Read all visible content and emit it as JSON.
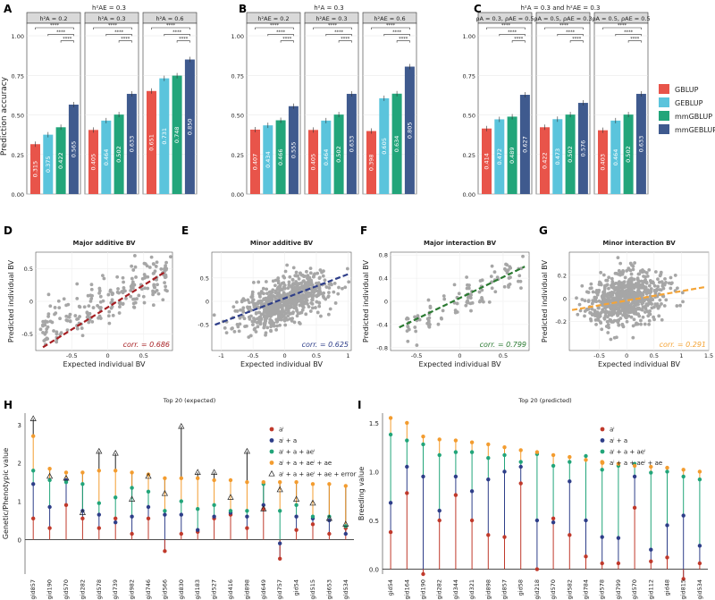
{
  "colors": {
    "GBLUP": "#e8544a",
    "GEBLUP": "#5bc4dc",
    "mmGBLUP": "#22a57a",
    "mmGEBLUP": "#3f5a8e",
    "point": "#a6a6a6",
    "red": "#a61e22",
    "blue": "#2e3e89",
    "green": "#2b7a32",
    "orange": "#f4a437",
    "dark": "#c0392b",
    "navy": "#2e3e89",
    "emerald": "#22a57a",
    "amber": "#f39c2f"
  },
  "chart_data": [
    {
      "id": "A",
      "type": "bar",
      "supertitle": "h²AE = 0.3",
      "ylabel": "Prediction accuracy",
      "ylim": [
        0,
        1
      ],
      "yticks": [
        "0.00",
        "0.25",
        "0.50",
        "0.75",
        "1.00"
      ],
      "sig": "****",
      "panels": [
        {
          "strip": "h²A = 0.2",
          "values": [
            0.315,
            0.375,
            0.422,
            0.565
          ]
        },
        {
          "strip": "h²A = 0.3",
          "values": [
            0.405,
            0.464,
            0.502,
            0.633
          ]
        },
        {
          "strip": "h²A = 0.6",
          "values": [
            0.651,
            0.731,
            0.748,
            0.85
          ]
        }
      ]
    },
    {
      "id": "B",
      "type": "bar",
      "supertitle": "h²A = 0.3",
      "ylim": [
        0,
        1
      ],
      "yticks": [
        "0.00",
        "0.25",
        "0.50",
        "0.75",
        "1.00"
      ],
      "sig": "****",
      "panels": [
        {
          "strip": "h²AE = 0.2",
          "values": [
            0.407,
            0.434,
            0.466,
            0.555
          ]
        },
        {
          "strip": "h²AE = 0.3",
          "values": [
            0.405,
            0.464,
            0.502,
            0.633
          ]
        },
        {
          "strip": "h²AE = 0.6",
          "values": [
            0.398,
            0.605,
            0.634,
            0.805
          ]
        }
      ]
    },
    {
      "id": "C",
      "type": "bar",
      "supertitle": "h²A = 0.3 and h²AE = 0.3",
      "ylim": [
        0,
        1
      ],
      "yticks": [
        "0.00",
        "0.25",
        "0.50",
        "0.75",
        "1.00"
      ],
      "sig": "****",
      "panels": [
        {
          "strip": "ρA = 0.3, ρAE = 0.5",
          "values": [
            0.414,
            0.472,
            0.489,
            0.627
          ]
        },
        {
          "strip": "ρA = 0.5, ρAE = 0.3",
          "values": [
            0.422,
            0.473,
            0.502,
            0.576
          ]
        },
        {
          "strip": "ρA = 0.5, ρAE = 0.5",
          "values": [
            0.403,
            0.464,
            0.502,
            0.633
          ]
        }
      ]
    },
    {
      "id": "D",
      "type": "scatter",
      "title": "Major additive BV",
      "xlabel": "Expected individual BV",
      "ylabel": "Predicted individual BV",
      "corr": "corr. = 0.686",
      "xlim": [
        -1.0,
        0.9
      ],
      "ylim": [
        -0.75,
        0.75
      ],
      "xticks": [
        -0.5,
        0.0,
        0.5
      ],
      "yticks": [
        -0.5,
        0.0,
        0.5
      ]
    },
    {
      "id": "E",
      "type": "scatter",
      "title": "Minor additive BV",
      "xlabel": "Expected individual BV",
      "ylabel": "",
      "corr": "corr. = 0.625",
      "xlim": [
        -1.15,
        1.05
      ],
      "ylim": [
        -1.05,
        1.05
      ],
      "xticks": [
        -1.0,
        -0.5,
        0.0,
        0.5,
        1.0
      ],
      "yticks": [
        -0.5,
        0.0,
        0.5
      ]
    },
    {
      "id": "F",
      "type": "scatter",
      "title": "Major interaction BV",
      "xlabel": "Expected individual BV",
      "ylabel": "Predicted individual BV",
      "corr": "corr. = 0.799",
      "xlim": [
        -0.8,
        0.8
      ],
      "ylim": [
        -0.85,
        0.85
      ],
      "xticks": [
        -0.5,
        0.0,
        0.5
      ],
      "yticks": [
        -0.8,
        -0.4,
        0.0,
        0.4,
        0.8
      ]
    },
    {
      "id": "G",
      "type": "scatter",
      "title": "Minor interaction BV",
      "xlabel": "Expected individual BV",
      "ylabel": "Predicted individual BV",
      "corr": "corr. = 0.291",
      "xlim": [
        -1.05,
        1.5
      ],
      "ylim": [
        -0.45,
        0.4
      ],
      "xticks": [
        -0.5,
        0.0,
        0.5,
        1.0,
        1.5
      ],
      "yticks": [
        -0.2,
        0.0,
        0.2
      ]
    },
    {
      "id": "H",
      "type": "lollipop",
      "title": "Top 20 (expected)",
      "ylabel": "Genetic/Phenotypic value",
      "ylim": [
        -0.9,
        3.3
      ],
      "yticks": [
        0,
        1,
        2,
        3
      ],
      "legend": [
        "aⁱ",
        "aⁱ + a",
        "aⁱ + a + aeⁱ",
        "aⁱ + a + aeⁱ + ae",
        "aⁱ + a + aeⁱ + ae + error"
      ],
      "categories": [
        "gid857",
        "gid190",
        "gid570",
        "gid282",
        "gid578",
        "gid739",
        "gid982",
        "gid746",
        "gid566",
        "gid830",
        "gid183",
        "gid527",
        "gid416",
        "gid898",
        "gid649",
        "gid757",
        "gid54",
        "gid515",
        "gid653",
        "gid534"
      ],
      "series": [
        {
          "name": "ai",
          "values": [
            0.55,
            0.3,
            0.9,
            0.55,
            0.3,
            0.55,
            0.15,
            0.55,
            -0.3,
            0.15,
            0.2,
            0.55,
            0.65,
            0.3,
            0.8,
            -0.5,
            0.25,
            0.4,
            0.15,
            0.3
          ]
        },
        {
          "name": "ai+a",
          "values": [
            1.45,
            0.85,
            1.55,
            0.75,
            0.65,
            0.45,
            0.6,
            0.85,
            0.65,
            0.65,
            0.25,
            0.6,
            0.7,
            0.6,
            0.9,
            -0.1,
            0.6,
            0.55,
            0.5,
            0.15
          ]
        },
        {
          "name": "ai+a+aei",
          "values": [
            1.8,
            1.55,
            1.5,
            1.45,
            0.95,
            1.1,
            1.35,
            1.25,
            0.75,
            1.0,
            0.8,
            0.9,
            0.75,
            0.75,
            1.45,
            0.75,
            0.9,
            0.6,
            0.6,
            0.35
          ]
        },
        {
          "name": "ai+a+aei+ae",
          "values": [
            2.7,
            1.85,
            1.75,
            1.75,
            1.8,
            1.8,
            1.75,
            1.7,
            1.6,
            1.6,
            1.6,
            1.55,
            1.55,
            1.5,
            1.5,
            1.5,
            1.5,
            1.45,
            1.45,
            1.4
          ]
        },
        {
          "name": "ai+a+aei+ae+error",
          "values": [
            3.15,
            1.65,
            1.6,
            0.7,
            2.3,
            2.25,
            1.05,
            1.65,
            1.2,
            2.95,
            1.75,
            1.75,
            1.1,
            2.3,
            0.8,
            1.3,
            1.05,
            0.95,
            0.55,
            0.4
          ]
        }
      ]
    },
    {
      "id": "I",
      "type": "lollipop",
      "title": "Top 20 (predicted)",
      "ylabel": "Breeding value",
      "ylim": [
        -0.05,
        1.6
      ],
      "yticks": [
        "0.0",
        "0.5",
        "1.0",
        "1.5"
      ],
      "legend": [
        "aⁱ",
        "aⁱ + a",
        "aⁱ + a + aeⁱ",
        "aⁱ + a + aeⁱ + ae"
      ],
      "categories": [
        "gid54",
        "gid164",
        "gid190",
        "gid282",
        "gid344",
        "gid321",
        "gid898",
        "gid857",
        "gid58",
        "gid218",
        "gid570",
        "gid582",
        "gid784",
        "gid578",
        "gid799",
        "gid570",
        "gid112",
        "gid48",
        "gid815",
        "gid534"
      ],
      "series": [
        {
          "name": "ai",
          "values": [
            0.38,
            0.78,
            -0.05,
            0.5,
            0.76,
            0.5,
            0.35,
            0.33,
            0.88,
            0.0,
            0.52,
            0.35,
            0.13,
            0.06,
            0.06,
            0.63,
            0.08,
            0.12,
            -0.1,
            0.06
          ]
        },
        {
          "name": "ai+a",
          "values": [
            0.68,
            1.05,
            0.95,
            0.6,
            0.95,
            0.8,
            0.92,
            1.0,
            1.05,
            0.5,
            0.48,
            0.9,
            0.5,
            0.33,
            0.32,
            0.95,
            0.2,
            0.45,
            0.55,
            0.24
          ]
        },
        {
          "name": "ai+a+aei",
          "values": [
            1.38,
            1.32,
            1.28,
            1.17,
            1.2,
            1.2,
            1.14,
            1.17,
            1.1,
            1.18,
            1.06,
            1.1,
            1.16,
            1.02,
            1.06,
            1.08,
            0.99,
            1.0,
            0.95,
            0.92
          ]
        },
        {
          "name": "ai+a+aei+ae",
          "values": [
            1.55,
            1.5,
            1.36,
            1.33,
            1.32,
            1.3,
            1.28,
            1.25,
            1.22,
            1.2,
            1.17,
            1.15,
            1.12,
            1.1,
            1.08,
            1.06,
            1.05,
            1.04,
            1.02,
            1.0
          ]
        }
      ]
    }
  ],
  "legend_bars": [
    "GBLUP",
    "GEBLUP",
    "mmGBLUP",
    "mmGEBLUP"
  ]
}
